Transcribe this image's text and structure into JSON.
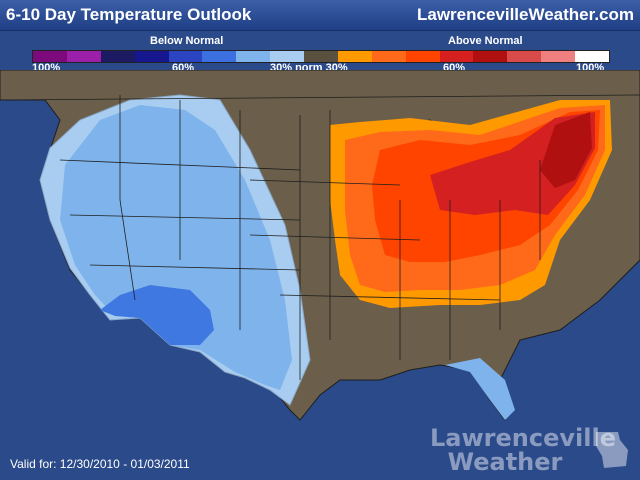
{
  "header": {
    "title": "6-10 Day Temperature Outlook",
    "site": "LawrencevilleWeather.com"
  },
  "legend": {
    "below_label": "Below Normal",
    "above_label": "Above Normal",
    "ticks": [
      "100%",
      "60%",
      "30% norm 30%",
      "60%",
      "100%"
    ],
    "colors": [
      "#7d0a7d",
      "#9b1fa8",
      "#1c1a63",
      "#16168e",
      "#2a44c2",
      "#3c6fe0",
      "#7fb3ec",
      "#a8cdf0",
      "#5a5040",
      "#ff9900",
      "#ff6a1a",
      "#ff4400",
      "#d61f1f",
      "#b01010",
      "#d94a4a",
      "#f08080",
      "#ffffff"
    ]
  },
  "map_colors": {
    "ocean": "#2a4a8a",
    "land_neutral": "#6b5e4a",
    "below_30": "#a8cdf0",
    "below_40": "#7fb3ec",
    "below_50": "#3f78e0",
    "above_30": "#ff9900",
    "above_40": "#ff6a1a",
    "above_50": "#ff4400",
    "above_60": "#d42020",
    "above_70": "#b01010",
    "borders": "#1e1e1e"
  },
  "footer": {
    "valid": "Valid for: 12/30/2010 - 01/03/2011",
    "watermark_line1": "Lawrenceville",
    "watermark_line2": "Weather"
  }
}
